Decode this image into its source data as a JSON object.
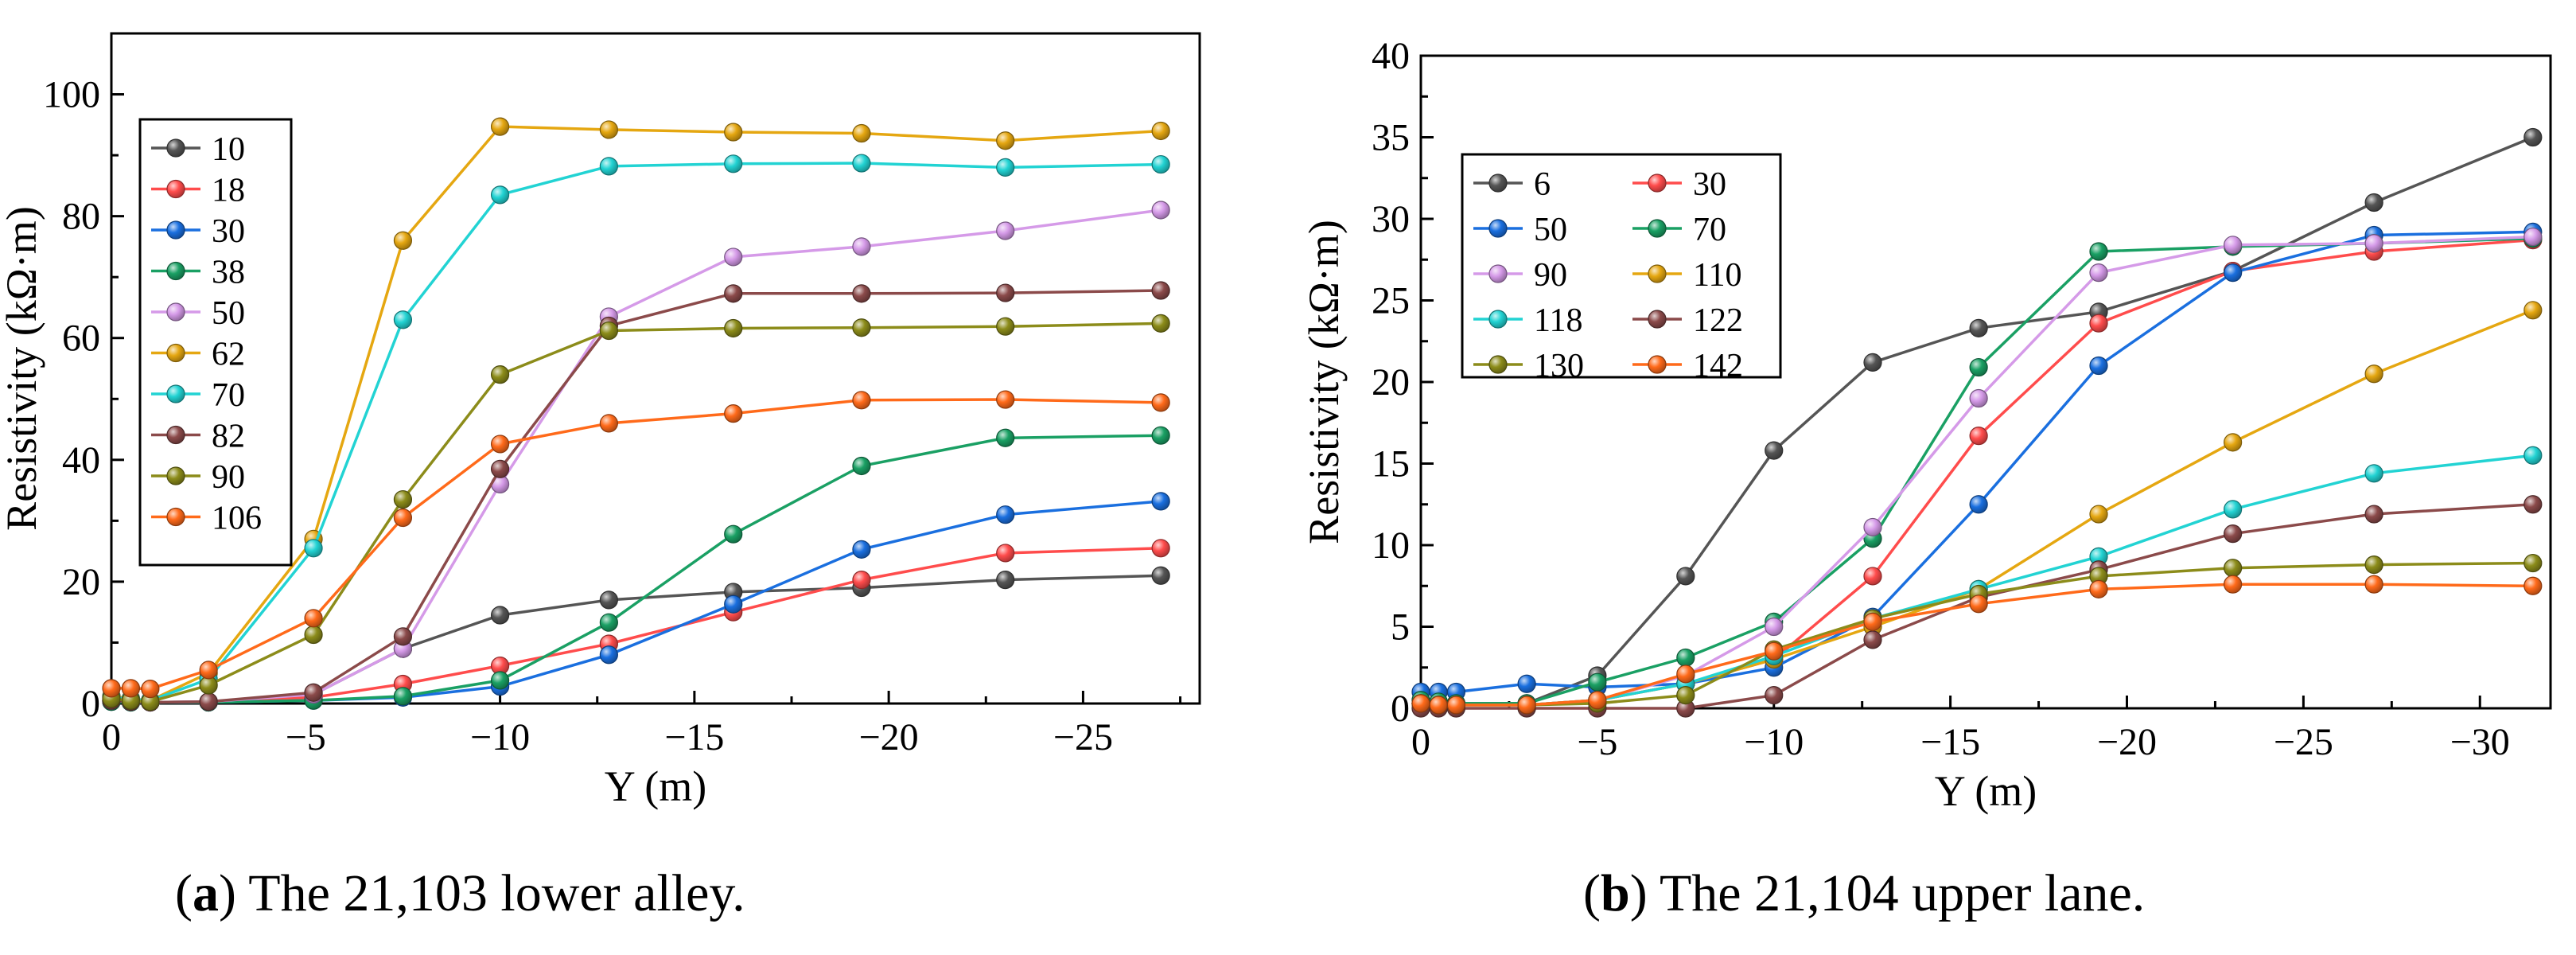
{
  "chart_data": [
    {
      "type": "line",
      "panel": "a",
      "xlabel": "Y (m)",
      "ylabel": "Resistivity (kΩ·m)",
      "xlim": [
        0,
        -28
      ],
      "ylim": [
        0,
        110
      ],
      "xticks": [
        0,
        -5,
        -10,
        -15,
        -20,
        -25
      ],
      "xtick_labels": [
        "0",
        "−5",
        "−10",
        "−15",
        "−20",
        "−25"
      ],
      "yticks": [
        0,
        20,
        40,
        60,
        80,
        100
      ],
      "ytick_labels": [
        "0",
        "20",
        "40",
        "60",
        "80",
        "100"
      ],
      "legend_position": "top-left",
      "legend_columns": 1,
      "x": [
        0,
        -0.5,
        -1,
        -2.5,
        -5.2,
        -7.5,
        -10,
        -12.8,
        -16,
        -19.3,
        -23,
        -27
      ],
      "series": [
        {
          "name": "10",
          "color": "#555555",
          "values": [
            0.5,
            0.3,
            0.2,
            0.3,
            1.5,
            9,
            14.5,
            17,
            18.3,
            19,
            20.3,
            21
          ]
        },
        {
          "name": "18",
          "color": "#ff4c4c",
          "values": [
            0.5,
            0.3,
            0.2,
            0.2,
            1,
            3.2,
            6.2,
            9.8,
            15,
            20.3,
            24.7,
            25.5
          ]
        },
        {
          "name": "30",
          "color": "#1a6fdf",
          "values": [
            0.3,
            0.2,
            0.2,
            0.2,
            0.5,
            1,
            2.8,
            8,
            16.3,
            25.3,
            31,
            33.2
          ]
        },
        {
          "name": "38",
          "color": "#1aa064",
          "values": [
            0.3,
            0.2,
            0.2,
            0.2,
            0.5,
            1.2,
            3.8,
            13.3,
            27.8,
            39,
            43.6,
            44
          ]
        },
        {
          "name": "50",
          "color": "#d59ae8",
          "values": [
            0.5,
            0.3,
            0.2,
            0.3,
            1.5,
            9,
            36,
            63.5,
            73.3,
            75,
            77.6,
            81
          ]
        },
        {
          "name": "62",
          "color": "#e5a711",
          "values": [
            1.2,
            0.8,
            0.5,
            5,
            27,
            76,
            94.7,
            94.2,
            93.8,
            93.6,
            92.4,
            94
          ]
        },
        {
          "name": "70",
          "color": "#22d3d3",
          "values": [
            1,
            0.7,
            0.5,
            4,
            25.5,
            63,
            83.5,
            88.2,
            88.6,
            88.7,
            88,
            88.5
          ]
        },
        {
          "name": "82",
          "color": "#8b4a4a",
          "values": [
            0.5,
            0.3,
            0.2,
            0.3,
            1.8,
            11,
            38.5,
            62,
            67.3,
            67.3,
            67.4,
            67.8
          ]
        },
        {
          "name": "90",
          "color": "#8c8c1a",
          "values": [
            0.8,
            0.5,
            0.3,
            3,
            11.3,
            33.5,
            54,
            61.2,
            61.6,
            61.7,
            61.9,
            62.4
          ]
        },
        {
          "name": "106",
          "color": "#ff6a1a",
          "values": [
            2.5,
            2.5,
            2.4,
            5.5,
            14,
            30.5,
            42.6,
            46,
            47.6,
            49.8,
            49.9,
            49.4
          ]
        }
      ]
    },
    {
      "type": "line",
      "panel": "b",
      "xlabel": "Y (m)",
      "ylabel": "Resistivity (kΩ·m)",
      "xlim": [
        0,
        -32
      ],
      "ylim": [
        0,
        40
      ],
      "xticks": [
        0,
        -5,
        -10,
        -15,
        -20,
        -25,
        -30
      ],
      "xtick_labels": [
        "0",
        "−5",
        "−10",
        "−15",
        "−20",
        "−25",
        "−30"
      ],
      "yticks": [
        0,
        5,
        10,
        15,
        20,
        25,
        30,
        35,
        40
      ],
      "ytick_labels": [
        "0",
        "5",
        "10",
        "15",
        "20",
        "25",
        "30",
        "35",
        "40"
      ],
      "legend_position": "top-left",
      "legend_columns": 2,
      "x": [
        0,
        -0.5,
        -1,
        -3,
        -5,
        -7.5,
        -10,
        -12.8,
        -15.8,
        -19.2,
        -23,
        -27,
        -31.5
      ],
      "series": [
        {
          "name": "6",
          "color": "#555555",
          "values": [
            0.5,
            0.4,
            0.3,
            0.3,
            2,
            8.1,
            15.8,
            21.2,
            23.3,
            24.3,
            26.8,
            31,
            35
          ]
        },
        {
          "name": "30",
          "color": "#ff4c4c",
          "values": [
            0.3,
            0.2,
            0.2,
            0.2,
            0.5,
            1.5,
            3,
            8.1,
            16.7,
            23.6,
            26.8,
            28,
            28.7
          ]
        },
        {
          "name": "50",
          "color": "#1a6fdf",
          "values": [
            1,
            1,
            1,
            1.5,
            1.3,
            1.5,
            2.5,
            5.6,
            12.5,
            21,
            26.7,
            29,
            29.2
          ]
        },
        {
          "name": "70",
          "color": "#1aa064",
          "values": [
            0.5,
            0.4,
            0.3,
            0.3,
            1.6,
            3.1,
            5.3,
            10.4,
            20.9,
            28,
            28.3,
            28.5,
            28.8
          ]
        },
        {
          "name": "90",
          "color": "#d59ae8",
          "values": [
            0.3,
            0.2,
            0.2,
            0.2,
            0.5,
            2,
            5,
            11.1,
            19,
            26.7,
            28.4,
            28.5,
            28.9
          ]
        },
        {
          "name": "110",
          "color": "#e5a711",
          "values": [
            0.3,
            0.2,
            0.2,
            0.2,
            0.5,
            1.5,
            3,
            5,
            7.3,
            11.9,
            16.3,
            20.5,
            24.4
          ]
        },
        {
          "name": "118",
          "color": "#22d3d3",
          "values": [
            0.3,
            0.2,
            0.2,
            0.2,
            0.5,
            1.5,
            3.2,
            5.5,
            7.3,
            9.3,
            12.2,
            14.4,
            15.5
          ]
        },
        {
          "name": "122",
          "color": "#8b4a4a",
          "values": [
            0,
            0,
            0,
            0,
            0,
            0,
            0.8,
            4.2,
            6.8,
            8.5,
            10.7,
            11.9,
            12.5
          ]
        },
        {
          "name": "130",
          "color": "#8c8c1a",
          "values": [
            0.3,
            0.2,
            0.2,
            0.2,
            0.3,
            0.8,
            3.6,
            5.5,
            7,
            8.1,
            8.6,
            8.8,
            8.9
          ]
        },
        {
          "name": "142",
          "color": "#ff6a1a",
          "values": [
            0.3,
            0.2,
            0.2,
            0.2,
            0.5,
            2.1,
            3.5,
            5.3,
            6.4,
            7.3,
            7.6,
            7.6,
            7.5
          ]
        }
      ]
    }
  ],
  "captions": {
    "a_letter": "a",
    "a_text": ") The 21,103 lower alley.",
    "b_letter": "b",
    "b_text": ") The 21,104 upper lane."
  }
}
